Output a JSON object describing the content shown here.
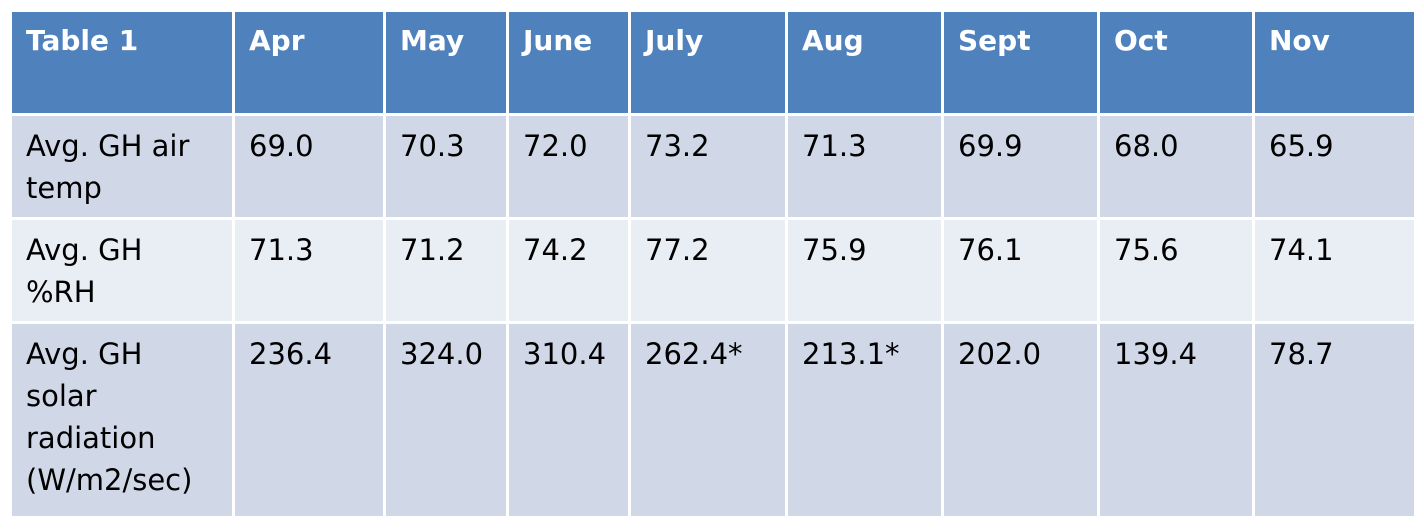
{
  "table": {
    "headers": [
      "Table 1",
      "Apr",
      "May",
      "June",
      "July",
      "Aug",
      "Sept",
      "Oct",
      "Nov"
    ],
    "rows": [
      {
        "label_lines": [
          "Avg.  GH air",
          "temp"
        ],
        "values": [
          "69.0",
          "70.3",
          "72.0",
          "73.2",
          "71.3",
          "69.9",
          "68.0",
          "65.9"
        ]
      },
      {
        "label_lines": [
          "Avg. GH",
          "%RH"
        ],
        "values": [
          "71.3",
          "71.2",
          "74.2",
          "77.2",
          "75.9",
          "76.1",
          "75.6",
          "74.1"
        ]
      },
      {
        "label_lines": [
          "Avg. GH",
          "solar",
          "radiation",
          "(W/m2/sec)"
        ],
        "values": [
          "236.4",
          "324.0",
          "310.4",
          "262.4*",
          "213.1*",
          "202.0",
          "139.4",
          "78.7"
        ]
      }
    ]
  },
  "colors": {
    "header_bg": "#4f81bd",
    "row_dark": "#d0d8e8",
    "row_light": "#e9edf4"
  }
}
